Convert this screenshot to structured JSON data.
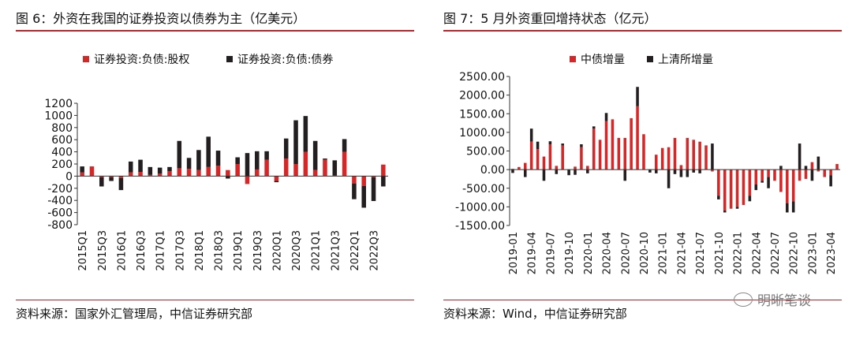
{
  "left": {
    "title": "图 6：外资在我国的证券投资以债券为主（亿美元）",
    "source": "资料来源：国家外汇管理局，中信证券研究部"
  },
  "right": {
    "title": "图 7：5 月外资重回增持状态（亿元）",
    "source": "资料来源：Wind，中信证券研究部"
  },
  "watermark": "明晰笔谈",
  "colors": {
    "red": "#d62728",
    "black": "#231f20",
    "rule": "#b4282d"
  },
  "chart_data": [
    {
      "type": "bar",
      "stacked": true,
      "categories": [
        "2015Q1",
        "2015Q2",
        "2015Q3",
        "2015Q4",
        "2016Q1",
        "2016Q2",
        "2016Q3",
        "2016Q4",
        "2017Q1",
        "2017Q2",
        "2017Q3",
        "2017Q4",
        "2018Q1",
        "2018Q2",
        "2018Q3",
        "2018Q4",
        "2019Q1",
        "2019Q2",
        "2019Q3",
        "2019Q4",
        "2020Q1",
        "2020Q2",
        "2020Q3",
        "2020Q4",
        "2021Q1",
        "2021Q2",
        "2021Q3",
        "2021Q4",
        "2022Q1",
        "2022Q2",
        "2022Q3",
        "2022Q4"
      ],
      "tick_labels": [
        "2015Q1",
        "2015Q3",
        "2016Q1",
        "2016Q3",
        "2017Q1",
        "2017Q3",
        "2018Q1",
        "2018Q3",
        "2019Q1",
        "2019Q3",
        "2020Q1",
        "2020Q3",
        "2021Q1",
        "2021Q3",
        "2022Q1",
        "2022Q3"
      ],
      "series": [
        {
          "name": "证券投资:负债:股权",
          "color": "#d62728",
          "values": [
            60,
            160,
            -20,
            -20,
            -30,
            60,
            70,
            20,
            40,
            80,
            130,
            120,
            100,
            150,
            170,
            100,
            200,
            -130,
            110,
            270,
            -80,
            290,
            200,
            400,
            100,
            270,
            10,
            400,
            -120,
            -160,
            -20,
            190
          ]
        },
        {
          "name": "证券投资:负债:债券",
          "color": "#231f20",
          "values": [
            100,
            0,
            -150,
            -60,
            -200,
            180,
            200,
            130,
            100,
            70,
            450,
            180,
            330,
            500,
            250,
            -40,
            110,
            380,
            300,
            140,
            -20,
            330,
            720,
            590,
            480,
            20,
            250,
            210,
            -260,
            -360,
            -390,
            -170
          ]
        }
      ],
      "ylim": [
        -800,
        1200
      ],
      "yticks": [
        -800,
        -600,
        -400,
        -200,
        0,
        200,
        400,
        600,
        800,
        1000,
        1200
      ],
      "legend": "top"
    },
    {
      "type": "bar",
      "stacked": true,
      "categories": [
        "2019-01",
        "2019-02",
        "2019-03",
        "2019-04",
        "2019-05",
        "2019-06",
        "2019-07",
        "2019-08",
        "2019-09",
        "2019-10",
        "2019-11",
        "2019-12",
        "2020-01",
        "2020-02",
        "2020-03",
        "2020-04",
        "2020-05",
        "2020-06",
        "2020-07",
        "2020-08",
        "2020-09",
        "2020-10",
        "2020-11",
        "2020-12",
        "2021-01",
        "2021-02",
        "2021-03",
        "2021-04",
        "2021-05",
        "2021-06",
        "2021-07",
        "2021-08",
        "2021-09",
        "2021-10",
        "2021-11",
        "2021-12",
        "2022-01",
        "2022-02",
        "2022-03",
        "2022-04",
        "2022-05",
        "2022-06",
        "2022-07",
        "2022-08",
        "2022-09",
        "2022-10",
        "2022-11",
        "2022-12",
        "2023-01",
        "2023-02",
        "2023-03",
        "2023-04",
        "2023-05"
      ],
      "tick_labels": [
        "2019-01",
        "2019-04",
        "2019-07",
        "2019-10",
        "2020-01",
        "2020-04",
        "2020-07",
        "2020-10",
        "2021-01",
        "2021-04",
        "2021-07",
        "2021-10",
        "2022-01",
        "2022-04",
        "2022-07",
        "2022-10",
        "2023-01",
        "2023-04"
      ],
      "series": [
        {
          "name": "中债增量",
          "color": "#d62728",
          "values": [
            20,
            70,
            180,
            750,
            550,
            350,
            680,
            100,
            650,
            0,
            80,
            600,
            100,
            1100,
            800,
            1300,
            1350,
            850,
            850,
            1380,
            1700,
            950,
            0,
            400,
            580,
            600,
            850,
            120,
            850,
            800,
            750,
            650,
            -50,
            -700,
            -1100,
            -1050,
            -1000,
            -950,
            -700,
            -400,
            -300,
            -200,
            -300,
            -600,
            -900,
            -850,
            -300,
            -250,
            200,
            -50,
            -200,
            -150,
            150
          ]
        },
        {
          "name": "上清所增量",
          "color": "#231f20",
          "values": [
            -90,
            0,
            -200,
            350,
            200,
            -300,
            80,
            -120,
            50,
            -150,
            -140,
            80,
            -100,
            60,
            0,
            220,
            0,
            0,
            -300,
            0,
            520,
            0,
            -80,
            -100,
            0,
            -500,
            -120,
            -200,
            -200,
            -80,
            -100,
            0,
            700,
            -100,
            -50,
            0,
            -50,
            0,
            -150,
            -150,
            -50,
            -300,
            0,
            100,
            -250,
            -300,
            700,
            100,
            -300,
            350,
            0,
            -300,
            0
          ]
        }
      ],
      "ylim": [
        -1500,
        2500
      ],
      "yticks": [
        -1500,
        -1000,
        -500,
        0,
        500,
        1000,
        1500,
        2000,
        2500
      ],
      "ytick_labels": [
        "-1500.00",
        "-1000.00",
        "-500.00",
        "0.00",
        "500.00",
        "1000.00",
        "1500.00",
        "2000.00",
        "2500.00"
      ],
      "legend": "top"
    }
  ]
}
